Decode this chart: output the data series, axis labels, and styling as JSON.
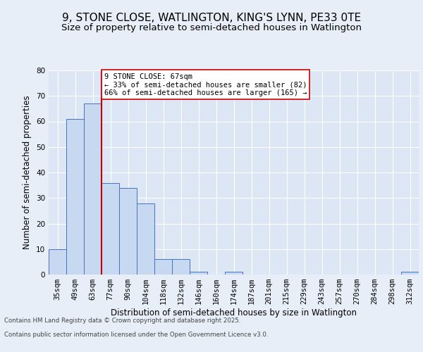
{
  "title": "9, STONE CLOSE, WATLINGTON, KING'S LYNN, PE33 0TE",
  "subtitle": "Size of property relative to semi-detached houses in Watlington",
  "xlabel": "Distribution of semi-detached houses by size in Watlington",
  "ylabel": "Number of semi-detached properties",
  "categories": [
    "35sqm",
    "49sqm",
    "63sqm",
    "77sqm",
    "90sqm",
    "104sqm",
    "118sqm",
    "132sqm",
    "146sqm",
    "160sqm",
    "174sqm",
    "187sqm",
    "201sqm",
    "215sqm",
    "229sqm",
    "243sqm",
    "257sqm",
    "270sqm",
    "284sqm",
    "298sqm",
    "312sqm"
  ],
  "values": [
    10,
    61,
    67,
    36,
    34,
    28,
    6,
    6,
    1,
    0,
    1,
    0,
    0,
    0,
    0,
    0,
    0,
    0,
    0,
    0,
    1
  ],
  "bar_color": "#c6d9f0",
  "bar_edge_color": "#4472c4",
  "ylim": [
    0,
    80
  ],
  "yticks": [
    0,
    10,
    20,
    30,
    40,
    50,
    60,
    70,
    80
  ],
  "property_line_bin": 2,
  "annotation_text_line1": "9 STONE CLOSE: 67sqm",
  "annotation_text_line2": "← 33% of semi-detached houses are smaller (82)",
  "annotation_text_line3": "66% of semi-detached houses are larger (165) →",
  "footer_line1": "Contains HM Land Registry data © Crown copyright and database right 2025.",
  "footer_line2": "Contains public sector information licensed under the Open Government Licence v3.0.",
  "background_color": "#e8eef7",
  "plot_bg_color": "#dce6f5",
  "grid_color": "#ffffff",
  "title_fontsize": 11,
  "subtitle_fontsize": 9.5,
  "axis_label_fontsize": 8.5,
  "tick_fontsize": 7.5,
  "annotation_fontsize": 7.5,
  "footer_fontsize": 6.2,
  "annotation_box_color": "#ffffff",
  "annotation_box_edge": "#cc0000",
  "vline_color": "#cc0000"
}
